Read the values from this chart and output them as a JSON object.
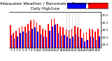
{
  "title": "Milwaukee Weather / Barometric Pressure",
  "subtitle": "Daily High/Low",
  "background_color": "#ffffff",
  "high_color": "#ff0000",
  "low_color": "#0000ff",
  "ylim": [
    28.8,
    31.2
  ],
  "yticks": [
    29.0,
    29.5,
    30.0,
    30.5,
    31.0
  ],
  "ytick_labels": [
    "29.0",
    "29.5",
    "30.0",
    "30.5",
    "31.0"
  ],
  "dates": [
    "1",
    "2",
    "3",
    "4",
    "5",
    "6",
    "7",
    "8",
    "9",
    "10",
    "11",
    "12",
    "13",
    "14",
    "15",
    "16",
    "17",
    "18",
    "19",
    "20",
    "21",
    "22",
    "23",
    "24",
    "25",
    "26",
    "27",
    "28",
    "29",
    "30",
    "31"
  ],
  "high_values": [
    30.3,
    29.8,
    29.95,
    30.15,
    30.25,
    30.2,
    30.4,
    30.65,
    30.7,
    30.5,
    30.3,
    30.1,
    30.0,
    30.4,
    30.75,
    30.8,
    30.4,
    30.2,
    30.15,
    30.05,
    30.0,
    30.1,
    30.25,
    30.15,
    30.1,
    29.8,
    29.85,
    30.1,
    30.05,
    29.9,
    30.1
  ],
  "low_values": [
    29.65,
    29.4,
    29.55,
    29.8,
    29.9,
    29.8,
    29.95,
    30.1,
    30.15,
    29.9,
    29.7,
    29.55,
    29.5,
    29.95,
    30.2,
    30.35,
    29.8,
    29.6,
    29.65,
    29.55,
    29.4,
    29.55,
    29.7,
    29.55,
    29.45,
    29.2,
    29.3,
    29.55,
    29.5,
    29.3,
    29.55
  ],
  "dotted_indices": [
    19,
    20,
    21,
    22,
    23
  ],
  "bar_width": 0.38,
  "title_fontsize": 4.5,
  "tick_fontsize": 3.0,
  "legend_fontsize": 3.0
}
